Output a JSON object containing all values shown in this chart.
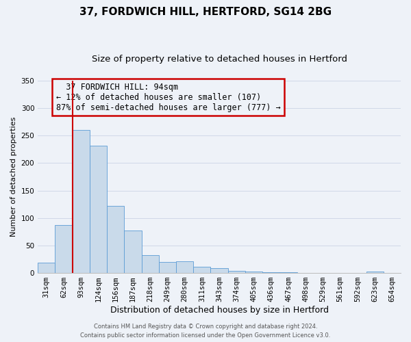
{
  "title": "37, FORDWICH HILL, HERTFORD, SG14 2BG",
  "subtitle": "Size of property relative to detached houses in Hertford",
  "xlabel": "Distribution of detached houses by size in Hertford",
  "ylabel": "Number of detached properties",
  "categories": [
    "31sqm",
    "62sqm",
    "93sqm",
    "124sqm",
    "156sqm",
    "187sqm",
    "218sqm",
    "249sqm",
    "280sqm",
    "311sqm",
    "343sqm",
    "374sqm",
    "405sqm",
    "436sqm",
    "467sqm",
    "498sqm",
    "529sqm",
    "561sqm",
    "592sqm",
    "623sqm",
    "654sqm"
  ],
  "values": [
    19,
    87,
    260,
    232,
    122,
    77,
    33,
    20,
    21,
    11,
    9,
    4,
    3,
    1,
    1,
    0,
    0,
    0,
    0,
    2,
    0
  ],
  "bar_color": "#c9daea",
  "bar_edge_color": "#5b9bd5",
  "vline_x_index": 2,
  "vline_color": "#cc0000",
  "annotation_box_text": "  37 FORDWICH HILL: 94sqm\n← 12% of detached houses are smaller (107)\n87% of semi-detached houses are larger (777) →",
  "annotation_box_color": "#cc0000",
  "ylim": [
    0,
    350
  ],
  "yticks": [
    0,
    50,
    100,
    150,
    200,
    250,
    300,
    350
  ],
  "grid_color": "#d0d8e8",
  "background_color": "#eef2f8",
  "footer_line1": "Contains HM Land Registry data © Crown copyright and database right 2024.",
  "footer_line2": "Contains public sector information licensed under the Open Government Licence v3.0.",
  "title_fontsize": 11,
  "subtitle_fontsize": 9.5,
  "xlabel_fontsize": 9,
  "ylabel_fontsize": 8,
  "tick_fontsize": 7.5,
  "annotation_fontsize": 8.5,
  "footer_fontsize": 6
}
